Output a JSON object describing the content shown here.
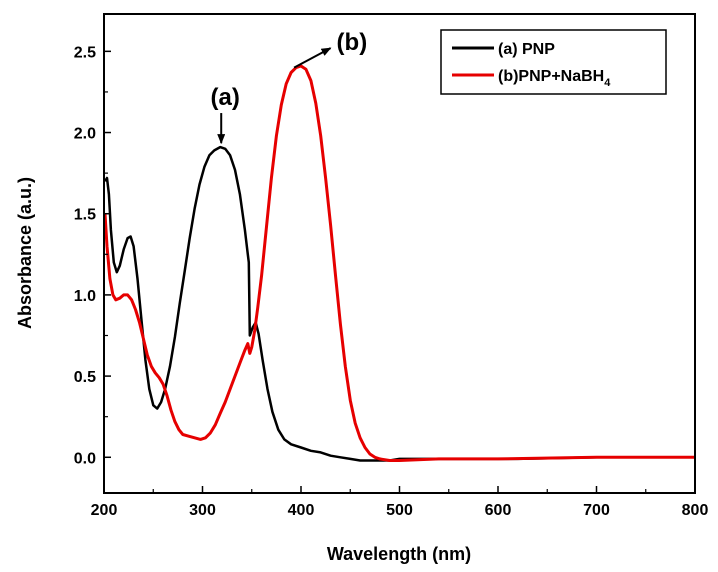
{
  "chart_data": {
    "type": "line",
    "xlabel": "Wavelength (nm)",
    "ylabel": "Absorbance (a.u.)",
    "xlim": [
      200,
      800
    ],
    "ylim": [
      -0.22,
      2.73
    ],
    "x_ticks": [
      200,
      300,
      400,
      500,
      600,
      700,
      800
    ],
    "y_ticks": [
      0.0,
      0.5,
      1.0,
      1.5,
      2.0,
      2.5
    ],
    "x_tick_labels": [
      "200",
      "300",
      "400",
      "500",
      "600",
      "700",
      "800"
    ],
    "y_tick_labels": [
      "0.0",
      "0.5",
      "1.0",
      "1.5",
      "2.0",
      "2.5"
    ],
    "grid": false,
    "legend_position": "top-right",
    "legend": {
      "a_prefix": "(a) PNP",
      "b_prefix": "(b)PNP+NaBH",
      "b_subscript": "4"
    },
    "annotations": [
      {
        "text": "(a)",
        "arrow_to": [
          319,
          1.91
        ],
        "arrow_from": [
          319,
          2.12
        ]
      },
      {
        "text": "(b)",
        "arrow_to": [
          393,
          2.4
        ],
        "arrow_from": [
          430,
          2.52
        ]
      }
    ],
    "series": [
      {
        "name": "(a) PNP",
        "color": "#000000",
        "points": [
          [
            201,
            1.7
          ],
          [
            203,
            1.72
          ],
          [
            205,
            1.62
          ],
          [
            207,
            1.4
          ],
          [
            210,
            1.2
          ],
          [
            213,
            1.14
          ],
          [
            216,
            1.18
          ],
          [
            220,
            1.28
          ],
          [
            224,
            1.35
          ],
          [
            227,
            1.36
          ],
          [
            230,
            1.3
          ],
          [
            234,
            1.1
          ],
          [
            238,
            0.85
          ],
          [
            242,
            0.6
          ],
          [
            246,
            0.42
          ],
          [
            250,
            0.32
          ],
          [
            254,
            0.3
          ],
          [
            258,
            0.34
          ],
          [
            262,
            0.42
          ],
          [
            267,
            0.56
          ],
          [
            272,
            0.74
          ],
          [
            277,
            0.95
          ],
          [
            282,
            1.15
          ],
          [
            287,
            1.35
          ],
          [
            292,
            1.53
          ],
          [
            297,
            1.68
          ],
          [
            302,
            1.79
          ],
          [
            307,
            1.86
          ],
          [
            312,
            1.89
          ],
          [
            318,
            1.91
          ],
          [
            323,
            1.9
          ],
          [
            328,
            1.86
          ],
          [
            333,
            1.77
          ],
          [
            338,
            1.62
          ],
          [
            343,
            1.4
          ],
          [
            346,
            1.25
          ],
          [
            347,
            1.2
          ],
          [
            348,
            0.75
          ],
          [
            351,
            0.8
          ],
          [
            354,
            0.83
          ],
          [
            357,
            0.76
          ],
          [
            361,
            0.6
          ],
          [
            366,
            0.42
          ],
          [
            371,
            0.28
          ],
          [
            377,
            0.17
          ],
          [
            383,
            0.11
          ],
          [
            390,
            0.08
          ],
          [
            400,
            0.06
          ],
          [
            410,
            0.04
          ],
          [
            420,
            0.03
          ],
          [
            430,
            0.01
          ],
          [
            440,
            0.0
          ],
          [
            450,
            -0.01
          ],
          [
            460,
            -0.02
          ],
          [
            470,
            -0.02
          ],
          [
            480,
            -0.02
          ],
          [
            490,
            -0.02
          ],
          [
            500,
            -0.01
          ],
          [
            560,
            -0.01
          ],
          [
            620,
            -0.01
          ],
          [
            700,
            0.0
          ],
          [
            800,
            0.0
          ]
        ]
      },
      {
        "name": "(b)PNP+NaBH4",
        "color": "#e60000",
        "points": [
          [
            201,
            1.5
          ],
          [
            203,
            1.3
          ],
          [
            206,
            1.1
          ],
          [
            209,
            1.0
          ],
          [
            212,
            0.97
          ],
          [
            216,
            0.98
          ],
          [
            220,
            1.0
          ],
          [
            224,
            1.0
          ],
          [
            228,
            0.97
          ],
          [
            232,
            0.91
          ],
          [
            236,
            0.83
          ],
          [
            240,
            0.73
          ],
          [
            244,
            0.63
          ],
          [
            248,
            0.56
          ],
          [
            252,
            0.52
          ],
          [
            256,
            0.49
          ],
          [
            260,
            0.45
          ],
          [
            264,
            0.38
          ],
          [
            268,
            0.29
          ],
          [
            272,
            0.22
          ],
          [
            276,
            0.17
          ],
          [
            280,
            0.14
          ],
          [
            286,
            0.13
          ],
          [
            292,
            0.12
          ],
          [
            298,
            0.11
          ],
          [
            303,
            0.12
          ],
          [
            308,
            0.15
          ],
          [
            313,
            0.2
          ],
          [
            318,
            0.27
          ],
          [
            323,
            0.34
          ],
          [
            328,
            0.42
          ],
          [
            333,
            0.5
          ],
          [
            338,
            0.58
          ],
          [
            343,
            0.66
          ],
          [
            346,
            0.7
          ],
          [
            348,
            0.64
          ],
          [
            350,
            0.68
          ],
          [
            353,
            0.78
          ],
          [
            356,
            0.92
          ],
          [
            360,
            1.12
          ],
          [
            365,
            1.42
          ],
          [
            370,
            1.72
          ],
          [
            375,
            1.98
          ],
          [
            380,
            2.17
          ],
          [
            385,
            2.3
          ],
          [
            390,
            2.37
          ],
          [
            395,
            2.4
          ],
          [
            400,
            2.41
          ],
          [
            405,
            2.39
          ],
          [
            410,
            2.32
          ],
          [
            415,
            2.18
          ],
          [
            420,
            1.98
          ],
          [
            425,
            1.72
          ],
          [
            430,
            1.43
          ],
          [
            435,
            1.12
          ],
          [
            440,
            0.82
          ],
          [
            445,
            0.56
          ],
          [
            450,
            0.35
          ],
          [
            455,
            0.21
          ],
          [
            460,
            0.12
          ],
          [
            465,
            0.06
          ],
          [
            470,
            0.02
          ],
          [
            475,
            0.0
          ],
          [
            480,
            -0.01
          ],
          [
            490,
            -0.02
          ],
          [
            500,
            -0.02
          ],
          [
            540,
            -0.01
          ],
          [
            600,
            -0.01
          ],
          [
            700,
            0.0
          ],
          [
            800,
            0.0
          ]
        ]
      }
    ]
  }
}
